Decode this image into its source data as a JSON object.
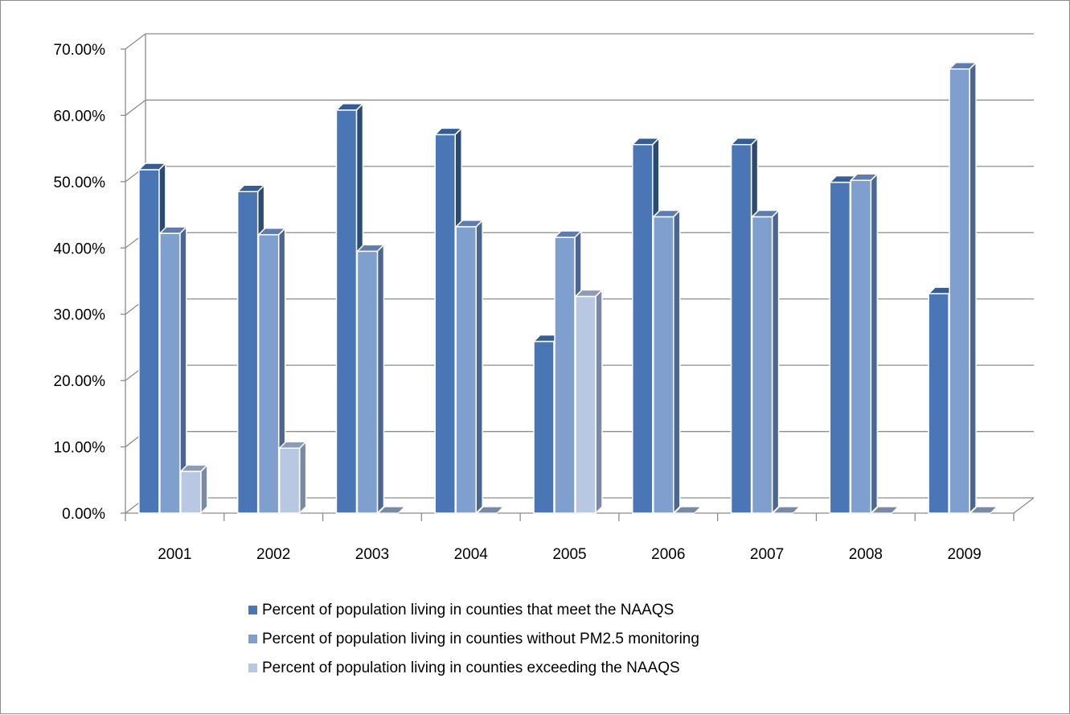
{
  "chart_data": {
    "type": "bar",
    "title": "",
    "xlabel": "",
    "ylabel": "",
    "categories": [
      "2001",
      "2002",
      "2003",
      "2004",
      "2005",
      "2006",
      "2007",
      "2008",
      "2009"
    ],
    "series": [
      {
        "name": "Percent of population living in counties that meet the NAAQS",
        "values": [
          51.8,
          48.5,
          60.8,
          57.1,
          25.9,
          55.6,
          55.6,
          49.9,
          33.1
        ],
        "color": "#4a76b5",
        "color_side": "#2c4a78",
        "color_top": "#345c95"
      },
      {
        "name": "Percent of population living in counties without PM2.5 monitoring",
        "values": [
          42.2,
          42.0,
          39.5,
          43.2,
          41.6,
          44.7,
          44.7,
          50.2,
          67.0
        ],
        "color": "#7f9fce",
        "color_side": "#4d6591",
        "color_top": "#5e7cae"
      },
      {
        "name": "Percent of population living in counties exceeding the NAAQS",
        "values": [
          6.3,
          9.8,
          0,
          0,
          32.7,
          0,
          0,
          0,
          0
        ],
        "color": "#b8c7e2",
        "color_side": "#7b8aa4",
        "color_top": "#8c9bb6"
      }
    ],
    "ylim": [
      0,
      70
    ],
    "yticks": [
      "0.00%",
      "10.00%",
      "20.00%",
      "30.00%",
      "40.00%",
      "50.00%",
      "60.00%",
      "70.00%"
    ],
    "grid": true,
    "legend_position": "bottom",
    "gridline_color": "#8c8c8c"
  }
}
